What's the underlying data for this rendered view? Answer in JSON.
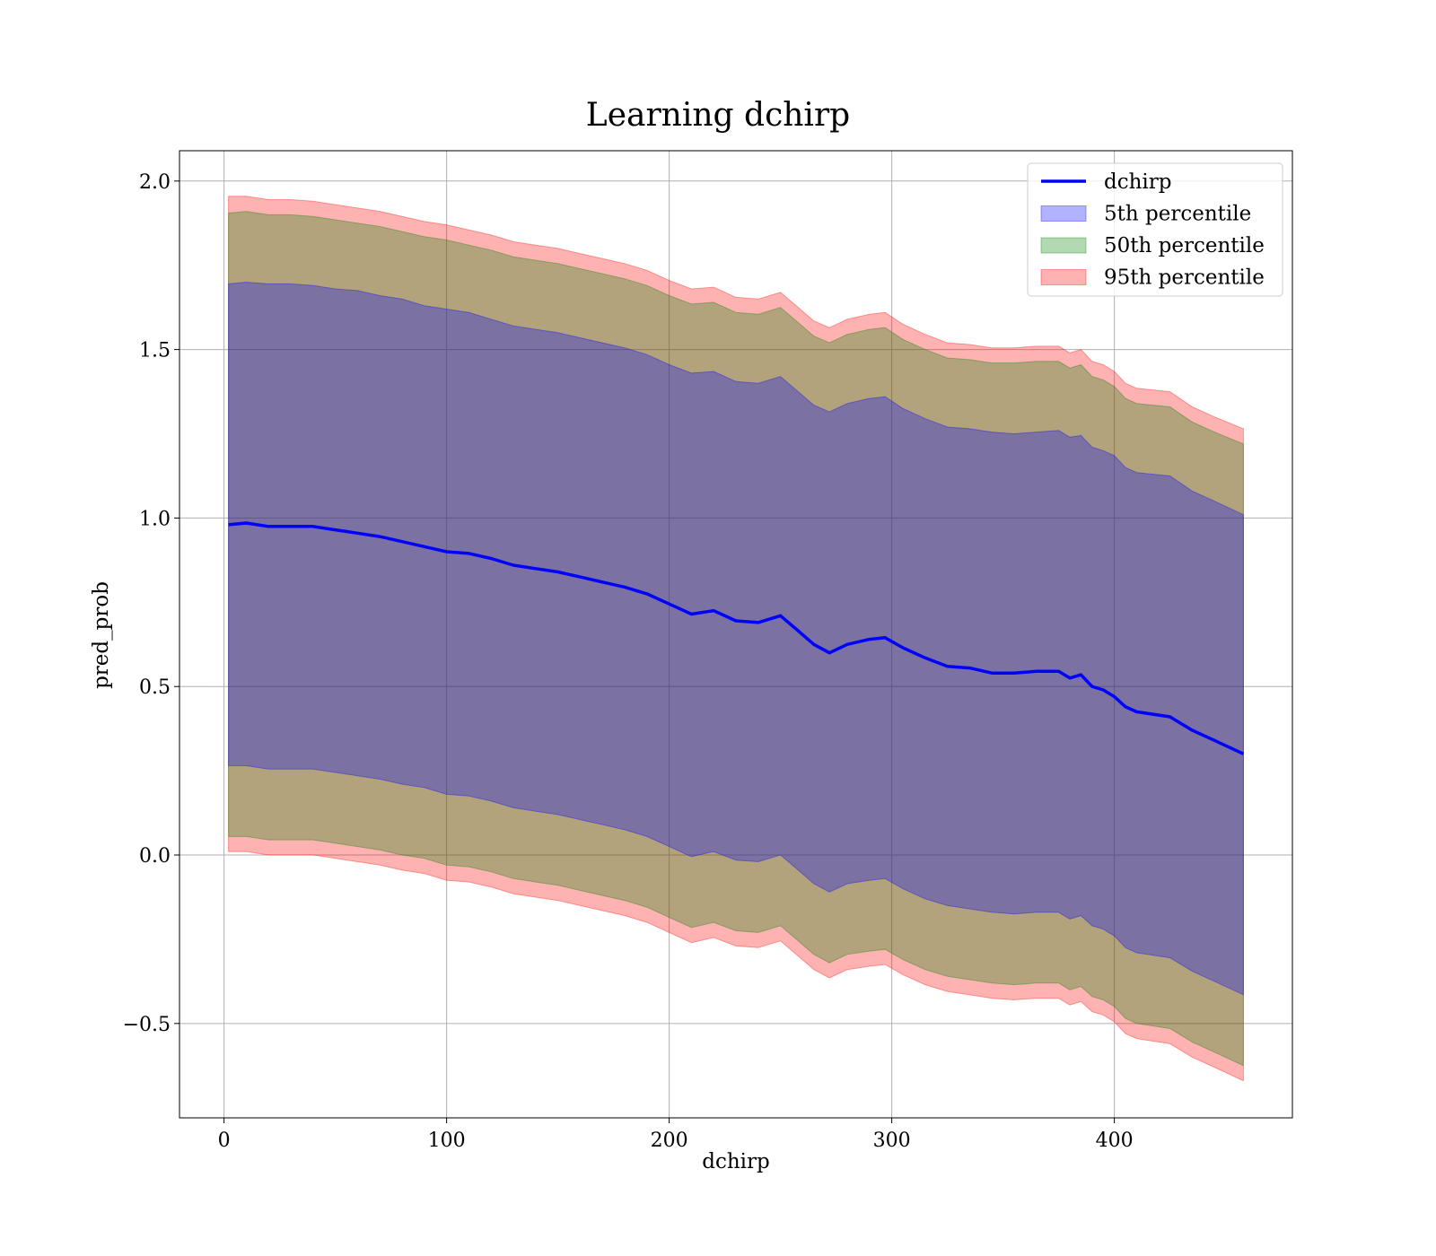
{
  "chart_data": {
    "type": "area",
    "title": "Learning dchirp",
    "xlabel": "dchirp",
    "ylabel": "pred_prob",
    "xlim": [
      -20,
      480
    ],
    "ylim": [
      -0.78,
      2.09
    ],
    "xticks": [
      0,
      100,
      200,
      300,
      400
    ],
    "xtick_labels": [
      "0",
      "100",
      "200",
      "300",
      "400"
    ],
    "yticks": [
      -0.5,
      0.0,
      0.5,
      1.0,
      1.5,
      2.0
    ],
    "ytick_labels": [
      "−0.5",
      "0.0",
      "0.5",
      "1.0",
      "1.5",
      "2.0"
    ],
    "grid": true,
    "legend_position": "upper right",
    "x": [
      2,
      10,
      20,
      30,
      40,
      50,
      60,
      70,
      80,
      90,
      100,
      110,
      120,
      130,
      140,
      150,
      160,
      170,
      180,
      190,
      200,
      210,
      220,
      230,
      240,
      250,
      258,
      265,
      272,
      280,
      290,
      297,
      305,
      315,
      325,
      335,
      345,
      355,
      365,
      375,
      380,
      385,
      390,
      395,
      400,
      405,
      410,
      425,
      435,
      445,
      458
    ],
    "series": [
      {
        "name": "dchirp",
        "kind": "line",
        "color": "#0000ff",
        "values": [
          0.98,
          0.985,
          0.975,
          0.975,
          0.975,
          0.965,
          0.955,
          0.945,
          0.93,
          0.915,
          0.9,
          0.895,
          0.88,
          0.86,
          0.85,
          0.84,
          0.825,
          0.81,
          0.795,
          0.775,
          0.745,
          0.715,
          0.725,
          0.695,
          0.69,
          0.71,
          0.665,
          0.625,
          0.6,
          0.625,
          0.64,
          0.645,
          0.615,
          0.585,
          0.56,
          0.555,
          0.54,
          0.54,
          0.545,
          0.545,
          0.525,
          0.535,
          0.5,
          0.49,
          0.47,
          0.44,
          0.425,
          0.41,
          0.37,
          0.34,
          0.3
        ]
      },
      {
        "name": "5th percentile",
        "kind": "band",
        "color": "#0000ff",
        "upper": [
          1.695,
          1.7,
          1.695,
          1.695,
          1.69,
          1.68,
          1.675,
          1.66,
          1.65,
          1.63,
          1.62,
          1.61,
          1.59,
          1.57,
          1.56,
          1.55,
          1.535,
          1.52,
          1.505,
          1.485,
          1.455,
          1.43,
          1.435,
          1.405,
          1.4,
          1.42,
          1.375,
          1.335,
          1.315,
          1.34,
          1.355,
          1.36,
          1.325,
          1.295,
          1.27,
          1.265,
          1.255,
          1.25,
          1.255,
          1.26,
          1.24,
          1.245,
          1.21,
          1.2,
          1.185,
          1.15,
          1.135,
          1.125,
          1.08,
          1.05,
          1.01
        ],
        "lower": [
          0.265,
          0.265,
          0.255,
          0.255,
          0.255,
          0.245,
          0.235,
          0.225,
          0.21,
          0.2,
          0.18,
          0.175,
          0.16,
          0.14,
          0.13,
          0.12,
          0.105,
          0.09,
          0.075,
          0.055,
          0.025,
          -0.005,
          0.01,
          -0.015,
          -0.02,
          0.0,
          -0.045,
          -0.085,
          -0.11,
          -0.085,
          -0.075,
          -0.07,
          -0.1,
          -0.13,
          -0.15,
          -0.16,
          -0.17,
          -0.175,
          -0.17,
          -0.17,
          -0.19,
          -0.18,
          -0.21,
          -0.22,
          -0.24,
          -0.275,
          -0.29,
          -0.305,
          -0.345,
          -0.375,
          -0.415
        ]
      },
      {
        "name": "50th percentile",
        "kind": "band",
        "color": "#008000",
        "upper": [
          1.905,
          1.91,
          1.9,
          1.9,
          1.895,
          1.885,
          1.875,
          1.865,
          1.85,
          1.835,
          1.825,
          1.81,
          1.795,
          1.775,
          1.765,
          1.755,
          1.74,
          1.725,
          1.71,
          1.69,
          1.66,
          1.635,
          1.64,
          1.61,
          1.605,
          1.625,
          1.58,
          1.54,
          1.52,
          1.545,
          1.56,
          1.565,
          1.53,
          1.5,
          1.475,
          1.47,
          1.46,
          1.46,
          1.465,
          1.465,
          1.445,
          1.455,
          1.42,
          1.41,
          1.39,
          1.355,
          1.34,
          1.33,
          1.285,
          1.255,
          1.22
        ],
        "lower": [
          0.055,
          0.055,
          0.045,
          0.045,
          0.045,
          0.035,
          0.025,
          0.015,
          0.0,
          -0.01,
          -0.03,
          -0.035,
          -0.05,
          -0.07,
          -0.08,
          -0.09,
          -0.105,
          -0.12,
          -0.135,
          -0.155,
          -0.185,
          -0.215,
          -0.2,
          -0.225,
          -0.23,
          -0.21,
          -0.255,
          -0.295,
          -0.32,
          -0.295,
          -0.285,
          -0.28,
          -0.31,
          -0.34,
          -0.36,
          -0.37,
          -0.38,
          -0.385,
          -0.38,
          -0.38,
          -0.4,
          -0.39,
          -0.42,
          -0.43,
          -0.45,
          -0.485,
          -0.5,
          -0.515,
          -0.555,
          -0.585,
          -0.625
        ]
      },
      {
        "name": "95th percentile",
        "kind": "band",
        "color": "#ff0000",
        "upper": [
          1.955,
          1.955,
          1.945,
          1.945,
          1.94,
          1.93,
          1.92,
          1.91,
          1.895,
          1.88,
          1.87,
          1.855,
          1.84,
          1.82,
          1.81,
          1.8,
          1.785,
          1.77,
          1.755,
          1.735,
          1.705,
          1.68,
          1.685,
          1.655,
          1.65,
          1.67,
          1.625,
          1.585,
          1.565,
          1.59,
          1.605,
          1.61,
          1.575,
          1.545,
          1.52,
          1.515,
          1.505,
          1.505,
          1.51,
          1.51,
          1.49,
          1.5,
          1.465,
          1.455,
          1.435,
          1.4,
          1.385,
          1.375,
          1.33,
          1.3,
          1.265
        ],
        "lower": [
          0.01,
          0.01,
          0.0,
          0.0,
          0.0,
          -0.01,
          -0.02,
          -0.03,
          -0.045,
          -0.055,
          -0.075,
          -0.08,
          -0.095,
          -0.115,
          -0.125,
          -0.135,
          -0.15,
          -0.165,
          -0.18,
          -0.2,
          -0.23,
          -0.26,
          -0.245,
          -0.27,
          -0.275,
          -0.255,
          -0.3,
          -0.34,
          -0.365,
          -0.34,
          -0.33,
          -0.325,
          -0.355,
          -0.385,
          -0.405,
          -0.415,
          -0.425,
          -0.43,
          -0.425,
          -0.425,
          -0.445,
          -0.435,
          -0.465,
          -0.475,
          -0.495,
          -0.53,
          -0.545,
          -0.56,
          -0.6,
          -0.63,
          -0.67
        ]
      }
    ],
    "legend": [
      "dchirp",
      "5th percentile",
      "50th percentile",
      "95th percentile"
    ]
  }
}
